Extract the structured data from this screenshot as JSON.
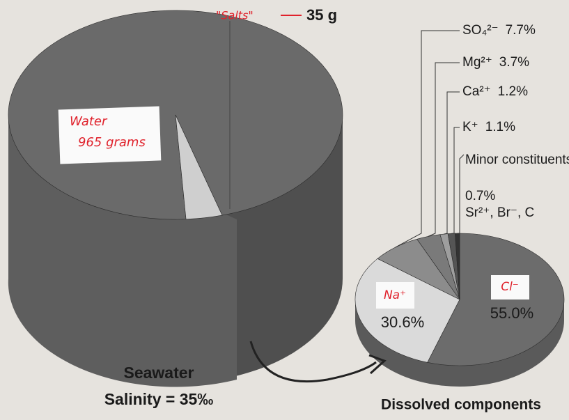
{
  "chart_data": [
    {
      "type": "pie",
      "title": "Seawater",
      "subtitle": "Salinity = 35‰",
      "categories": [
        "Water",
        "\"Salts\""
      ],
      "values": [
        965,
        35
      ],
      "value_labels": [
        "965 grams",
        "35 g"
      ],
      "colors": [
        "#6a6a6a",
        "#cfcfcf"
      ]
    },
    {
      "type": "pie",
      "title": "Dissolved components",
      "categories": [
        "Cl⁻",
        "Na⁺",
        "SO₄²⁻",
        "Mg²⁺",
        "Ca²⁺",
        "K⁺",
        "Minor constituents:"
      ],
      "values": [
        55.0,
        30.6,
        7.7,
        3.7,
        1.2,
        1.1,
        0.7
      ],
      "value_labels": [
        "55.0%",
        "30.6%",
        "7.7%",
        "3.7%",
        "1.2%",
        "1.1%",
        "0.7%"
      ],
      "note": "Sr²⁺, Br⁻, C",
      "colors": [
        "#6c6c6c",
        "#dadada",
        "#8c8c8c",
        "#7a7a7a",
        "#9e9e9e",
        "#555555",
        "#333333"
      ]
    }
  ]
}
